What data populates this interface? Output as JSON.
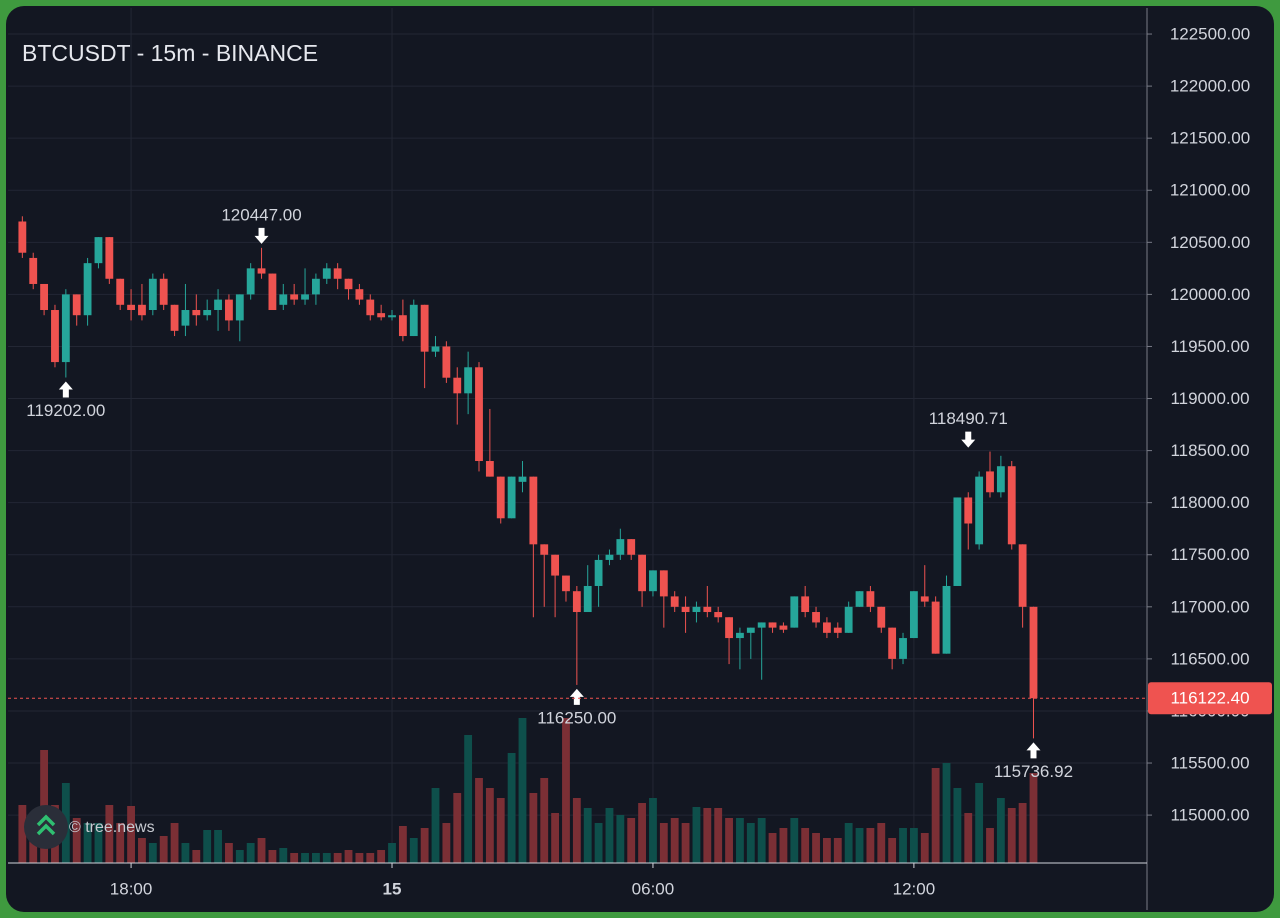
{
  "chart_data": {
    "type": "candlestick",
    "title": "BTCUSDT - 15m - BINANCE",
    "watermark": "© tree.news",
    "x": [
      15.5,
      15.75,
      16,
      16.25,
      16.5,
      16.75,
      17,
      17.25,
      17.5,
      17.75,
      18,
      18.25,
      18.5,
      18.75,
      19,
      19.25,
      19.5,
      19.75,
      20,
      20.25,
      20.5,
      20.75,
      21,
      21.25,
      21.5,
      21.75,
      22,
      22.25,
      22.5,
      22.75,
      23,
      23.25,
      23.5,
      23.75,
      24,
      24.25,
      24.5,
      24.75,
      25,
      25.25,
      25.5,
      25.75,
      26,
      26.25,
      26.5,
      26.75,
      27,
      27.25,
      27.5,
      27.75,
      28,
      28.25,
      28.5,
      28.75,
      29,
      29.25,
      29.5,
      29.75,
      30,
      30.25,
      30.5,
      30.75,
      31,
      31.25,
      31.5,
      31.75,
      32,
      32.25,
      32.5,
      32.75,
      33,
      33.25,
      33.5,
      33.75,
      34,
      34.25,
      34.5,
      34.75,
      35,
      35.25,
      35.5,
      35.75,
      36,
      36.25,
      36.5,
      36.75,
      37,
      37.25,
      37.5,
      37.75,
      38,
      38.25,
      38.5,
      38.75
    ],
    "open": [
      120700,
      120350,
      120100,
      119850,
      119350,
      120000,
      119800,
      120300,
      120550,
      120150,
      119900,
      119900,
      119850,
      120150,
      119900,
      119700,
      119850,
      119800,
      119850,
      119950,
      119750,
      120000,
      120250,
      120200,
      119900,
      120000,
      119950,
      120000,
      120150,
      120250,
      120150,
      120050,
      119950,
      119820,
      119780,
      119800,
      119600,
      119900,
      119450,
      119500,
      119200,
      119050,
      119300,
      118400,
      118250,
      117850,
      118200,
      118250,
      117600,
      117500,
      117300,
      117150,
      116950,
      117200,
      117450,
      117500,
      117650,
      117500,
      117150,
      117350,
      117100,
      117000,
      116950,
      117000,
      116950,
      116900,
      116700,
      116750,
      116800,
      116850,
      116820,
      116800,
      117100,
      116950,
      116850,
      116800,
      116750,
      117000,
      117150,
      117000,
      116800,
      116500,
      116700,
      117100,
      117050,
      116550,
      117200,
      118050,
      117600,
      118300,
      118100,
      118350,
      117600,
      117000
    ],
    "high": [
      120750,
      120400,
      120100,
      119900,
      120050,
      120000,
      120350,
      120550,
      120550,
      120150,
      120050,
      120100,
      120200,
      120200,
      119900,
      120100,
      120000,
      119950,
      120050,
      120000,
      120000,
      120300,
      120447,
      120200,
      120100,
      120100,
      120250,
      120200,
      120300,
      120300,
      120150,
      120100,
      120000,
      119900,
      119850,
      119950,
      119950,
      119900,
      119600,
      119550,
      119300,
      119450,
      119350,
      118900,
      118250,
      118250,
      118400,
      118250,
      117600,
      117500,
      117300,
      117200,
      117400,
      117500,
      117550,
      117750,
      117650,
      117500,
      117350,
      117350,
      117150,
      117100,
      117050,
      117200,
      117000,
      116900,
      116800,
      116800,
      116850,
      116850,
      116850,
      117100,
      117200,
      117000,
      116900,
      116850,
      117050,
      117150,
      117200,
      117000,
      116800,
      116750,
      117150,
      117400,
      117100,
      117300,
      118050,
      118100,
      118300,
      118490.71,
      118450,
      118400,
      117600,
      117000
    ],
    "low": [
      120350,
      120050,
      119800,
      119300,
      119202,
      119700,
      119700,
      120250,
      120100,
      119850,
      119750,
      119750,
      119800,
      119850,
      119600,
      119600,
      119700,
      119750,
      119650,
      119650,
      119550,
      119950,
      120150,
      119850,
      119850,
      119900,
      119900,
      119900,
      120100,
      120050,
      119950,
      119900,
      119750,
      119750,
      119750,
      119550,
      119600,
      119100,
      119400,
      119150,
      118750,
      118850,
      118300,
      118250,
      117800,
      117850,
      118100,
      116900,
      117000,
      116900,
      117050,
      116250,
      116950,
      117000,
      117400,
      117450,
      117450,
      117000,
      117100,
      116800,
      116950,
      116750,
      116850,
      116900,
      116850,
      116450,
      116400,
      116500,
      116300,
      116750,
      116750,
      116800,
      116900,
      116800,
      116700,
      116700,
      116750,
      117000,
      116950,
      116750,
      116400,
      116450,
      116700,
      117000,
      116550,
      116550,
      117200,
      117550,
      117550,
      118050,
      118050,
      117550,
      116800,
      115736.92
    ],
    "close": [
      120400,
      120100,
      119850,
      119350,
      120000,
      119800,
      120300,
      120550,
      120150,
      119900,
      119850,
      119800,
      120150,
      119900,
      119650,
      119850,
      119800,
      119850,
      119950,
      119750,
      120000,
      120250,
      120200,
      119850,
      120000,
      119950,
      120000,
      120150,
      120250,
      120150,
      120050,
      119950,
      119800,
      119780,
      119800,
      119600,
      119900,
      119450,
      119500,
      119200,
      119050,
      119300,
      118400,
      118250,
      117850,
      118250,
      118250,
      117600,
      117500,
      117300,
      117150,
      116950,
      117200,
      117450,
      117500,
      117650,
      117500,
      117150,
      117350,
      117100,
      117000,
      116950,
      117000,
      116950,
      116900,
      116700,
      116750,
      116800,
      116850,
      116800,
      116780,
      117100,
      116950,
      116850,
      116750,
      116750,
      117000,
      117150,
      117000,
      116800,
      116500,
      116700,
      117150,
      117050,
      116550,
      117200,
      118050,
      117800,
      118250,
      118100,
      118350,
      117600,
      117000,
      116122.4
    ],
    "volume": [
      58,
      40,
      113,
      58,
      80,
      45,
      40,
      40,
      58,
      40,
      57,
      25,
      20,
      27,
      40,
      20,
      13,
      33,
      33,
      20,
      13,
      20,
      25,
      13,
      15,
      10,
      10,
      10,
      10,
      10,
      13,
      10,
      10,
      13,
      20,
      37,
      25,
      35,
      75,
      40,
      70,
      128,
      85,
      75,
      65,
      110,
      145,
      70,
      85,
      50,
      145,
      65,
      55,
      40,
      55,
      48,
      45,
      60,
      65,
      40,
      45,
      40,
      56,
      55,
      55,
      45,
      45,
      40,
      45,
      30,
      35,
      45,
      35,
      30,
      25,
      25,
      40,
      35,
      35,
      40,
      25,
      35,
      35,
      30,
      95,
      100,
      75,
      50,
      80,
      35,
      65,
      55,
      60,
      90
    ],
    "volume_lim": [
      0,
      150
    ],
    "up_color": "#26a69a",
    "down_color": "#ef5350",
    "up_volume_color": "#0e4f4b",
    "down_volume_color": "#7b2f35",
    "grid": true,
    "xlim": [
      15.17,
      41.36
    ],
    "xticks": [
      {
        "value": 18,
        "label": "18:00"
      },
      {
        "value": 24,
        "label": "15",
        "bold": true
      },
      {
        "value": 30,
        "label": "06:00"
      },
      {
        "value": 36,
        "label": "12:00"
      }
    ],
    "ylim": [
      114540,
      122750
    ],
    "yticks": [
      {
        "value": 115000,
        "label": "115000.00"
      },
      {
        "value": 115500,
        "label": "115500.00"
      },
      {
        "value": 116000,
        "label": "116000.00"
      },
      {
        "value": 116500,
        "label": "116500.00"
      },
      {
        "value": 117000,
        "label": "117000.00"
      },
      {
        "value": 117500,
        "label": "117500.00"
      },
      {
        "value": 118000,
        "label": "118000.00"
      },
      {
        "value": 118500,
        "label": "118500.00"
      },
      {
        "value": 119000,
        "label": "119000.00"
      },
      {
        "value": 119500,
        "label": "119500.00"
      },
      {
        "value": 120000,
        "label": "120000.00"
      },
      {
        "value": 120500,
        "label": "120500.00"
      },
      {
        "value": 121000,
        "label": "121000.00"
      },
      {
        "value": 121500,
        "label": "121500.00"
      },
      {
        "value": 122000,
        "label": "122000.00"
      },
      {
        "value": 122500,
        "label": "122500.00"
      }
    ],
    "annotations": [
      {
        "x": 21,
        "value": 120447,
        "label": "120447.00",
        "position": "above"
      },
      {
        "x": 16.5,
        "value": 119202,
        "label": "119202.00",
        "position": "below"
      },
      {
        "x": 28.25,
        "value": 116250,
        "label": "116250.00",
        "position": "below"
      },
      {
        "x": 37.25,
        "value": 118490.71,
        "label": "118490.71",
        "position": "above"
      },
      {
        "x": 38.75,
        "value": 115736.92,
        "label": "115736.92",
        "position": "below"
      }
    ],
    "last_price": {
      "value": 116122.4,
      "label": "116122.40",
      "color": "#ef5350"
    }
  }
}
